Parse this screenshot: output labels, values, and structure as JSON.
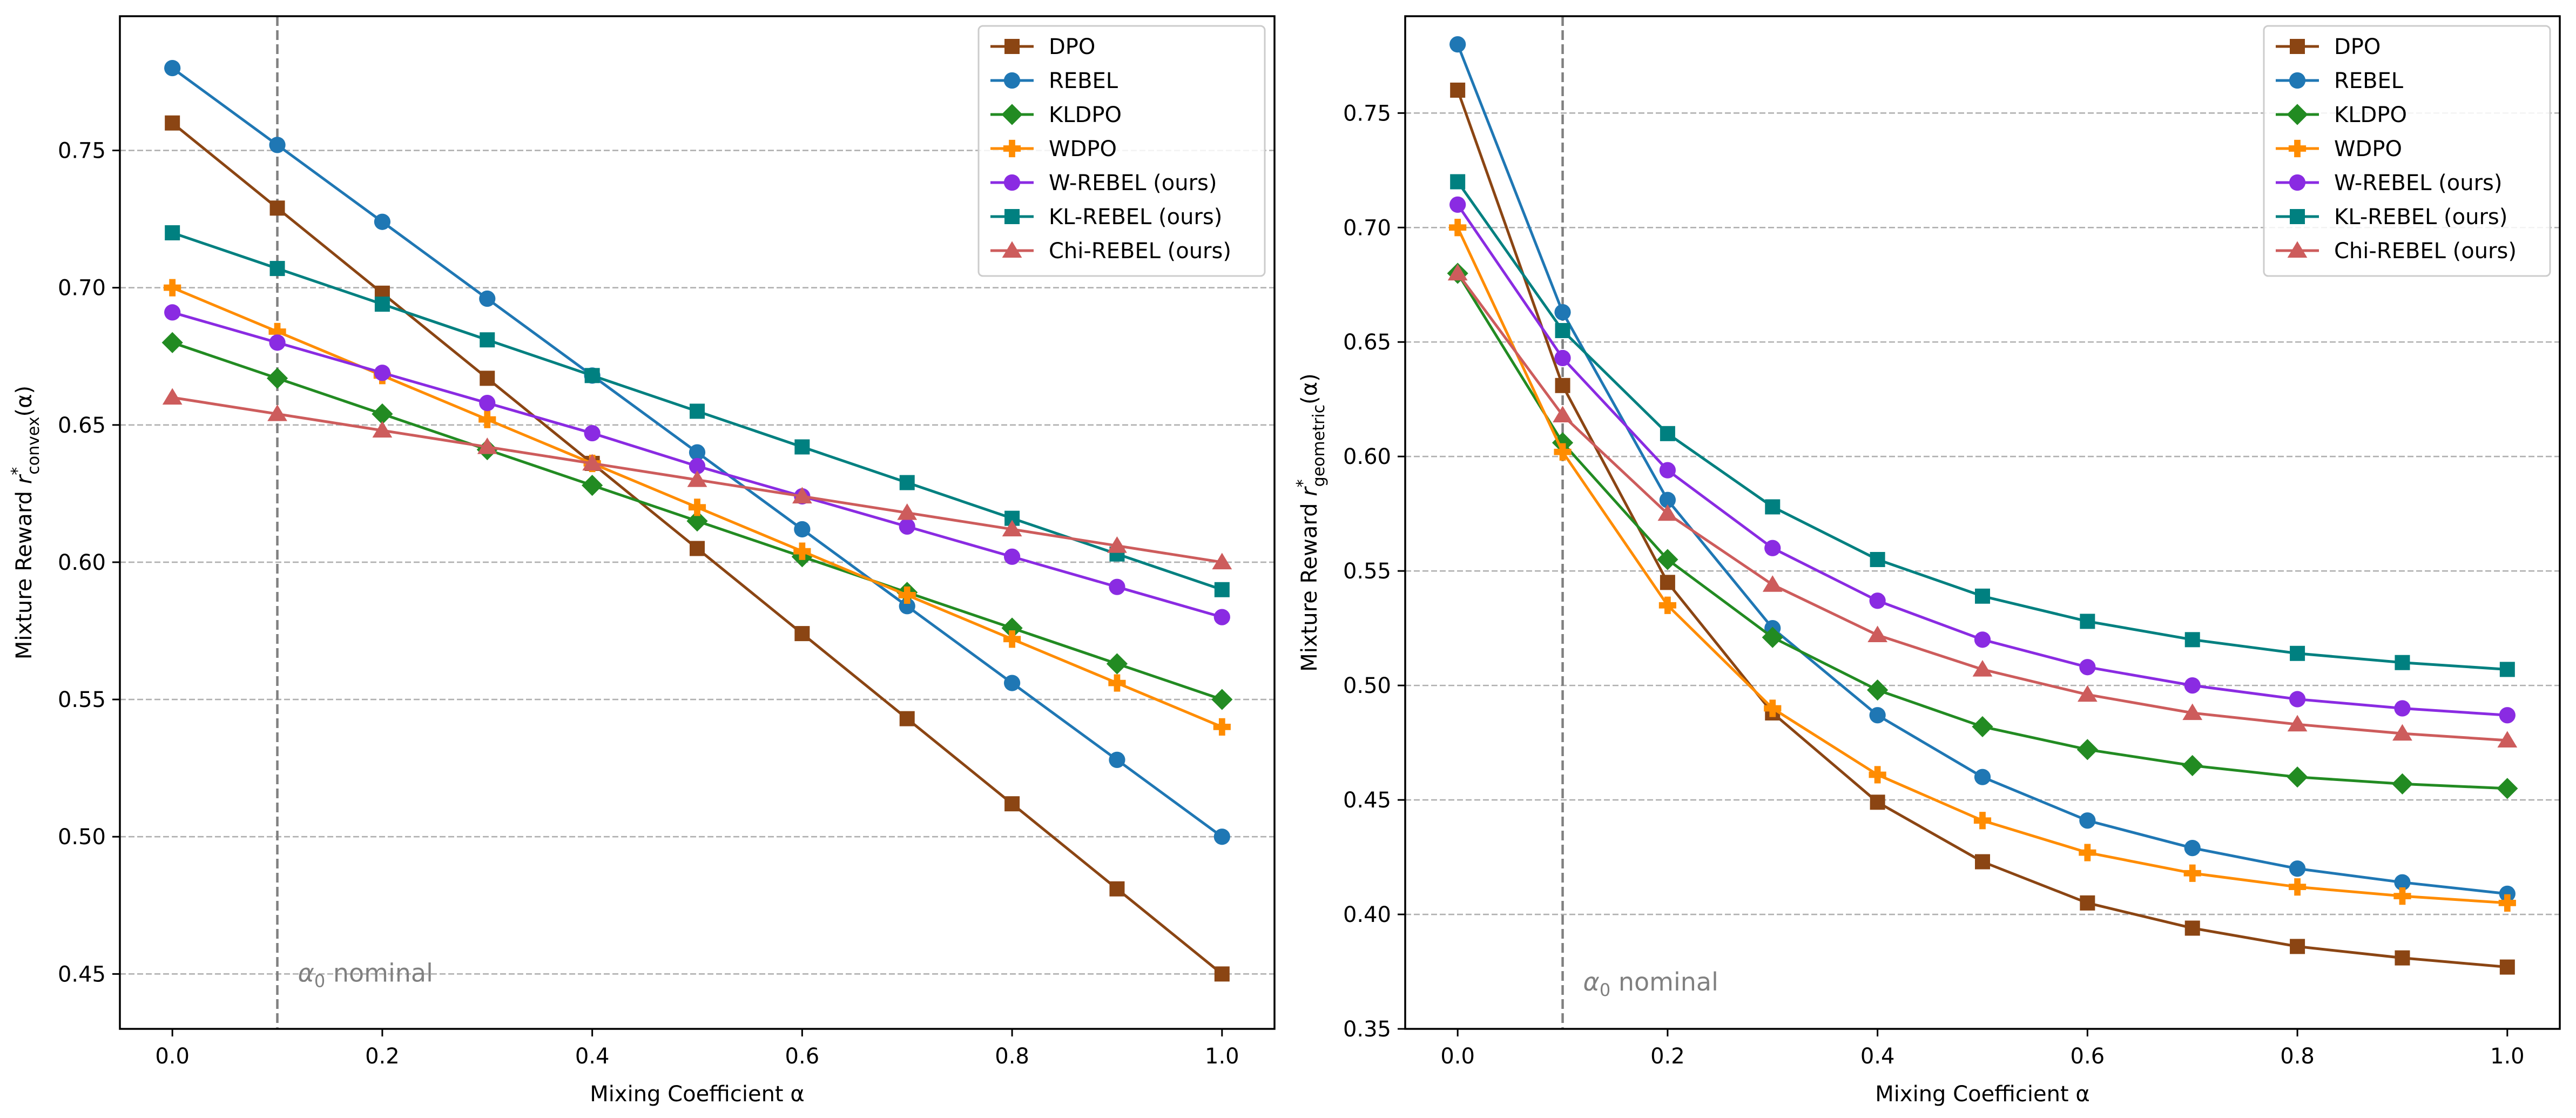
{
  "chart_data": [
    {
      "type": "line",
      "xlabel": "Mixing Coefficient α",
      "ylabel": "Mixture Reward r*convex(α)",
      "ylabel_parts": {
        "prefix": "Mixture Reward ",
        "sym": "r",
        "sup": "*",
        "sub": "convex",
        "suffix": "(α)"
      },
      "xlim": [
        -0.05,
        1.05
      ],
      "ylim": [
        0.43,
        0.7989
      ],
      "xticks": [
        0.0,
        0.2,
        0.4,
        0.6,
        0.8,
        1.0
      ],
      "yticks": [
        0.45,
        0.5,
        0.55,
        0.6,
        0.65,
        0.7,
        0.75
      ],
      "xtick_labels": [
        "0.0",
        "0.2",
        "0.4",
        "0.6",
        "0.8",
        "1.0"
      ],
      "ytick_labels": [
        "0.45",
        "0.50",
        "0.55",
        "0.60",
        "0.65",
        "0.70",
        "0.75"
      ],
      "grid": "horizontal dashed",
      "legend_position": "top-right",
      "annotation": {
        "x": 0.1,
        "label": "α",
        "subscript": "0",
        "text": " nominal",
        "y_text": 0.45
      },
      "x": [
        0.0,
        0.1,
        0.2,
        0.3,
        0.4,
        0.5,
        0.6,
        0.7,
        0.8,
        0.9,
        1.0
      ],
      "series": [
        {
          "name": "DPO",
          "color": "#8B4513",
          "marker": "square",
          "values": [
            0.76,
            0.729,
            0.698,
            0.667,
            0.636,
            0.605,
            0.574,
            0.543,
            0.512,
            0.481,
            0.45
          ]
        },
        {
          "name": "REBEL",
          "color": "#1f77b4",
          "marker": "circle",
          "values": [
            0.78,
            0.752,
            0.724,
            0.696,
            0.668,
            0.64,
            0.612,
            0.584,
            0.556,
            0.528,
            0.5
          ]
        },
        {
          "name": "KLDPO",
          "color": "#228B22",
          "marker": "diamond",
          "values": [
            0.68,
            0.667,
            0.654,
            0.641,
            0.628,
            0.615,
            0.602,
            0.589,
            0.576,
            0.563,
            0.55
          ]
        },
        {
          "name": "WDPO",
          "color": "#FF8C00",
          "marker": "plus",
          "values": [
            0.7,
            0.684,
            0.668,
            0.652,
            0.636,
            0.62,
            0.604,
            0.588,
            0.572,
            0.556,
            0.54
          ]
        },
        {
          "name": "W-REBEL (ours)",
          "color": "#8A2BE2",
          "marker": "circle",
          "values": [
            0.691,
            0.68,
            0.669,
            0.658,
            0.647,
            0.635,
            0.624,
            0.613,
            0.602,
            0.591,
            0.58
          ]
        },
        {
          "name": "KL-REBEL (ours)",
          "color": "#008080",
          "marker": "square",
          "values": [
            0.72,
            0.707,
            0.694,
            0.681,
            0.668,
            0.655,
            0.642,
            0.629,
            0.616,
            0.603,
            0.59
          ]
        },
        {
          "name": "Chi-REBEL (ours)",
          "color": "#CD5C5C",
          "marker": "triangle",
          "values": [
            0.66,
            0.654,
            0.648,
            0.642,
            0.636,
            0.63,
            0.624,
            0.618,
            0.612,
            0.606,
            0.6
          ]
        }
      ]
    },
    {
      "type": "line",
      "xlabel": "Mixing Coefficient α",
      "ylabel": "Mixture Reward r*geometric(α)",
      "ylabel_parts": {
        "prefix": "Mixture Reward ",
        "sym": "r",
        "sup": "*",
        "sub": "geometric",
        "suffix": "(α)"
      },
      "xlim": [
        -0.05,
        1.05
      ],
      "ylim": [
        0.35,
        0.7923
      ],
      "xticks": [
        0.0,
        0.2,
        0.4,
        0.6,
        0.8,
        1.0
      ],
      "yticks": [
        0.35,
        0.4,
        0.45,
        0.5,
        0.55,
        0.6,
        0.65,
        0.7,
        0.75
      ],
      "xtick_labels": [
        "0.0",
        "0.2",
        "0.4",
        "0.6",
        "0.8",
        "1.0"
      ],
      "ytick_labels": [
        "0.35",
        "0.40",
        "0.45",
        "0.50",
        "0.55",
        "0.60",
        "0.65",
        "0.70",
        "0.75"
      ],
      "grid": "horizontal dashed",
      "legend_position": "top-right",
      "annotation": {
        "x": 0.1,
        "label": "α",
        "subscript": "0",
        "text": " nominal",
        "y_text": 0.37
      },
      "x": [
        0.0,
        0.1,
        0.2,
        0.3,
        0.4,
        0.5,
        0.6,
        0.7,
        0.8,
        0.9,
        1.0
      ],
      "series": [
        {
          "name": "DPO",
          "color": "#8B4513",
          "marker": "square",
          "values": [
            0.76,
            0.631,
            0.545,
            0.488,
            0.449,
            0.423,
            0.405,
            0.394,
            0.386,
            0.381,
            0.377
          ]
        },
        {
          "name": "REBEL",
          "color": "#1f77b4",
          "marker": "circle",
          "values": [
            0.78,
            0.663,
            0.581,
            0.525,
            0.487,
            0.46,
            0.441,
            0.429,
            0.42,
            0.414,
            0.409
          ]
        },
        {
          "name": "KLDPO",
          "color": "#228B22",
          "marker": "diamond",
          "values": [
            0.68,
            0.606,
            0.555,
            0.521,
            0.498,
            0.482,
            0.472,
            0.465,
            0.46,
            0.457,
            0.455
          ]
        },
        {
          "name": "WDPO",
          "color": "#FF8C00",
          "marker": "plus",
          "values": [
            0.7,
            0.602,
            0.535,
            0.49,
            0.461,
            0.441,
            0.427,
            0.418,
            0.412,
            0.408,
            0.405
          ]
        },
        {
          "name": "W-REBEL (ours)",
          "color": "#8A2BE2",
          "marker": "circle",
          "values": [
            0.71,
            0.643,
            0.594,
            0.56,
            0.537,
            0.52,
            0.508,
            0.5,
            0.494,
            0.49,
            0.487
          ]
        },
        {
          "name": "KL-REBEL (ours)",
          "color": "#008080",
          "marker": "square",
          "values": [
            0.72,
            0.655,
            0.61,
            0.578,
            0.555,
            0.539,
            0.528,
            0.52,
            0.514,
            0.51,
            0.507
          ]
        },
        {
          "name": "Chi-REBEL (ours)",
          "color": "#CD5C5C",
          "marker": "triangle",
          "values": [
            0.68,
            0.618,
            0.575,
            0.544,
            0.522,
            0.507,
            0.496,
            0.488,
            0.483,
            0.479,
            0.476
          ]
        }
      ]
    }
  ]
}
